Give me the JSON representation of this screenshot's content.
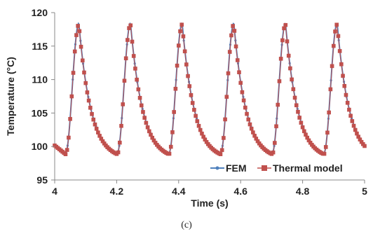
{
  "chart_data": {
    "type": "line",
    "xlabel": "Time (s)",
    "ylabel": "Temperature (°C)",
    "xlim": [
      4,
      5
    ],
    "ylim": [
      95,
      120
    ],
    "x_ticks": [
      "4",
      "4.2",
      "4.4",
      "4.6",
      "4.8",
      "5"
    ],
    "y_ticks": [
      "95",
      "100",
      "105",
      "110",
      "115",
      "120"
    ],
    "grid": false,
    "legend_position": "bottom-right",
    "caption": "(c)",
    "waveform": {
      "period": 0.1667,
      "start_time": 4.035,
      "min_temp": 99.0,
      "max_temp": 118.4,
      "peak_times": [
        4.078,
        4.245,
        4.411,
        4.578,
        4.745,
        4.912
      ],
      "valley_times": [
        4.035,
        4.202,
        4.368,
        4.535,
        4.702,
        4.868
      ]
    },
    "series": [
      {
        "name": "FEM",
        "color": "#4F81BD",
        "marker": "dot"
      },
      {
        "name": "Thermal model",
        "color": "#C0504D",
        "marker": "square"
      }
    ]
  }
}
